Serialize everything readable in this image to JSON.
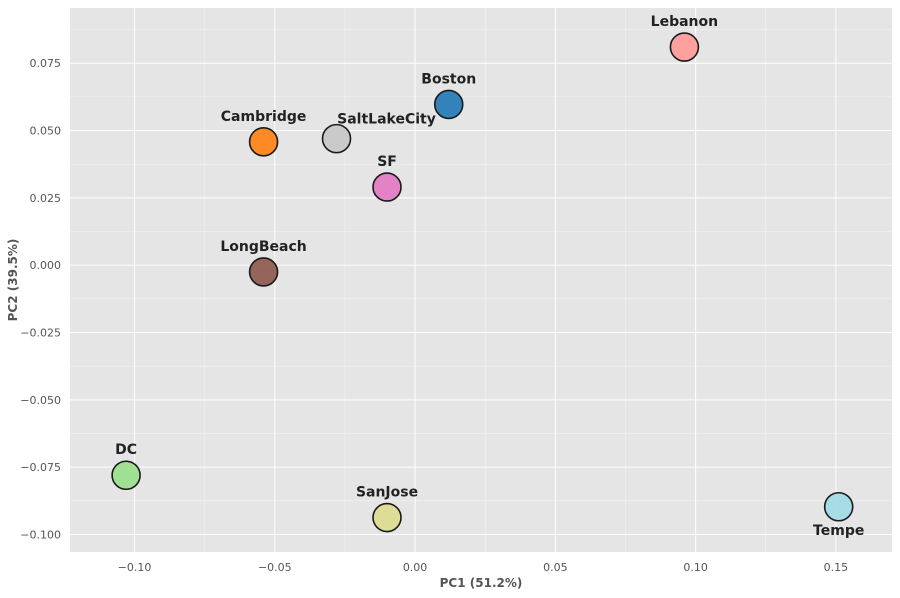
{
  "chart_data": {
    "type": "scatter",
    "title": "",
    "xlabel": "PC1 (51.2%)",
    "ylabel": "PC2 (39.5%)",
    "xlim": [
      -0.123,
      0.17
    ],
    "ylim": [
      -0.1065,
      0.0955
    ],
    "xticks": [
      -0.1,
      -0.05,
      0.0,
      0.05,
      0.1,
      0.15
    ],
    "xtick_labels": [
      "−0.10",
      "−0.05",
      "0.00",
      "0.05",
      "0.10",
      "0.15"
    ],
    "yticks": [
      -0.1,
      -0.075,
      -0.05,
      -0.025,
      0.0,
      0.025,
      0.05,
      0.075
    ],
    "ytick_labels": [
      "−0.100",
      "−0.075",
      "−0.050",
      "−0.025",
      "0.000",
      "0.025",
      "0.050",
      "0.075"
    ],
    "grid": true,
    "background": "#e5e5e5",
    "points": [
      {
        "label": "Lebanon",
        "x": 0.096,
        "y": 0.081,
        "color": "#ff9896",
        "label_pos": "above"
      },
      {
        "label": "Boston",
        "x": 0.012,
        "y": 0.0597,
        "color": "#1f77b4",
        "label_pos": "above"
      },
      {
        "label": "SaltLakeCity",
        "x": -0.028,
        "y": 0.047,
        "color": "#c7c7c7",
        "label_pos": "above-right"
      },
      {
        "label": "Cambridge",
        "x": -0.054,
        "y": 0.0458,
        "color": "#ff7f0e",
        "label_pos": "above"
      },
      {
        "label": "SF",
        "x": -0.01,
        "y": 0.029,
        "color": "#e377c2",
        "label_pos": "above"
      },
      {
        "label": "LongBeach",
        "x": -0.054,
        "y": -0.0025,
        "color": "#8c564b",
        "label_pos": "above"
      },
      {
        "label": "DC",
        "x": -0.103,
        "y": -0.078,
        "color": "#98df8a",
        "label_pos": "above"
      },
      {
        "label": "SanJose",
        "x": -0.01,
        "y": -0.0937,
        "color": "#dbdb8d",
        "label_pos": "above"
      },
      {
        "label": "Tempe",
        "x": 0.151,
        "y": -0.0897,
        "color": "#9edae5",
        "label_pos": "below"
      }
    ]
  }
}
